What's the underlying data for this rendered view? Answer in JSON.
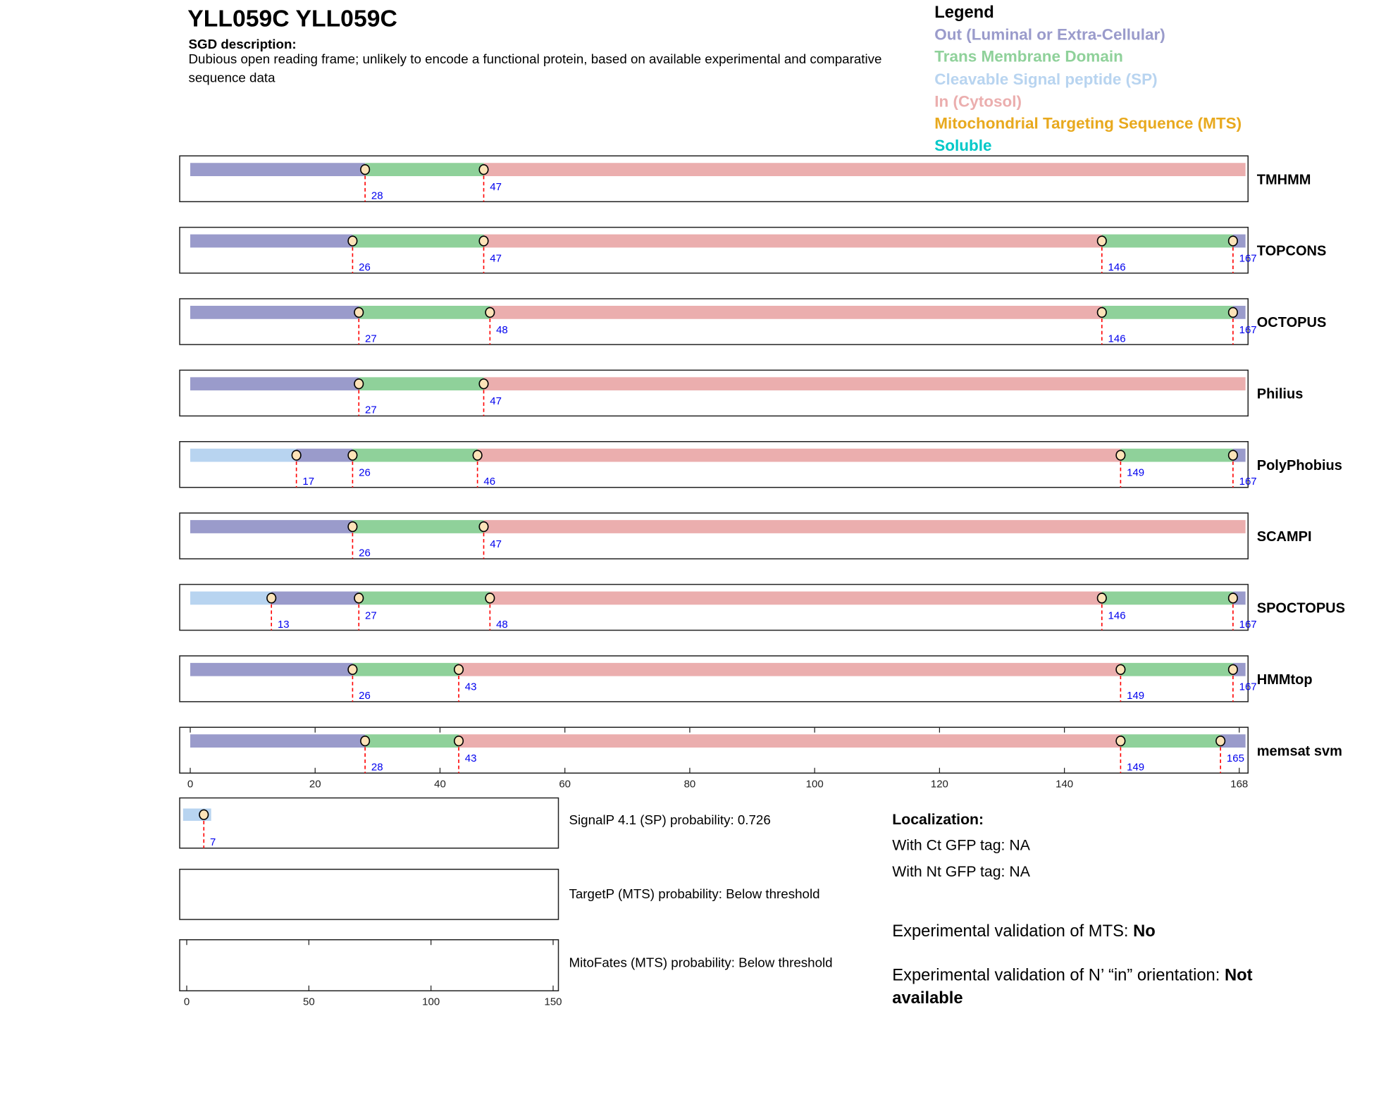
{
  "header": {
    "title": "YLL059C  YLL059C",
    "sgd_heading": "SGD description:",
    "sgd_description": "Dubious open reading frame; unlikely to encode a functional protein, based on available experimental and comparative sequence data"
  },
  "legend": {
    "title": "Legend",
    "items": [
      {
        "label": "Out (Luminal or Extra-Cellular)",
        "color": "#9a9bcb"
      },
      {
        "label": "Trans Membrane Domain",
        "color": "#8fd19a"
      },
      {
        "label": "Cleavable Signal peptide (SP)",
        "color": "#b8d4f0"
      },
      {
        "label": "In (Cytosol)",
        "color": "#ebaeae"
      },
      {
        "label": "Mitochondrial Targeting Sequence (MTS)",
        "color": "#e8a91e"
      },
      {
        "label": "Soluble",
        "color": "#00c8c8"
      }
    ]
  },
  "chart_data": {
    "type": "topology-tracks",
    "length": 169,
    "xlim": [
      0,
      168
    ],
    "xticks": [
      0,
      20,
      40,
      60,
      80,
      100,
      120,
      140,
      168
    ],
    "colors": {
      "out": "#9a9bcb",
      "tm": "#8fd19a",
      "sp": "#b8d4f0",
      "in": "#ebaeae"
    },
    "tracks": [
      {
        "name": "TMHMM",
        "segments": [
          [
            "out",
            0,
            28
          ],
          [
            "tm",
            28,
            47
          ],
          [
            "in",
            47,
            169
          ]
        ],
        "markers": [
          28,
          47
        ]
      },
      {
        "name": "TOPCONS",
        "segments": [
          [
            "out",
            0,
            26
          ],
          [
            "tm",
            26,
            47
          ],
          [
            "in",
            47,
            146
          ],
          [
            "tm",
            146,
            167
          ],
          [
            "out",
            167,
            169
          ]
        ],
        "markers": [
          26,
          47,
          146,
          167
        ]
      },
      {
        "name": "OCTOPUS",
        "segments": [
          [
            "out",
            0,
            27
          ],
          [
            "tm",
            27,
            48
          ],
          [
            "in",
            48,
            146
          ],
          [
            "tm",
            146,
            167
          ],
          [
            "out",
            167,
            169
          ]
        ],
        "markers": [
          27,
          48,
          146,
          167
        ]
      },
      {
        "name": "Philius",
        "segments": [
          [
            "out",
            0,
            27
          ],
          [
            "tm",
            27,
            47
          ],
          [
            "in",
            47,
            169
          ]
        ],
        "markers": [
          27,
          47
        ]
      },
      {
        "name": "PolyPhobius",
        "segments": [
          [
            "sp",
            0,
            17
          ],
          [
            "out",
            17,
            26
          ],
          [
            "tm",
            26,
            46
          ],
          [
            "in",
            46,
            149
          ],
          [
            "tm",
            149,
            167
          ],
          [
            "out",
            167,
            169
          ]
        ],
        "markers": [
          17,
          26,
          46,
          149,
          167
        ]
      },
      {
        "name": "SCAMPI",
        "segments": [
          [
            "out",
            0,
            26
          ],
          [
            "tm",
            26,
            47
          ],
          [
            "in",
            47,
            169
          ]
        ],
        "markers": [
          26,
          47
        ]
      },
      {
        "name": "SPOCTOPUS",
        "segments": [
          [
            "sp",
            0,
            13
          ],
          [
            "out",
            13,
            27
          ],
          [
            "tm",
            27,
            48
          ],
          [
            "in",
            48,
            146
          ],
          [
            "tm",
            146,
            167
          ],
          [
            "out",
            167,
            169
          ]
        ],
        "markers": [
          13,
          27,
          48,
          146,
          167
        ]
      },
      {
        "name": "HMMtop",
        "segments": [
          [
            "out",
            0,
            26
          ],
          [
            "tm",
            26,
            43
          ],
          [
            "in",
            43,
            149
          ],
          [
            "tm",
            149,
            167
          ],
          [
            "out",
            167,
            169
          ]
        ],
        "markers": [
          26,
          43,
          149,
          167
        ]
      },
      {
        "name": "memsat svm",
        "segments": [
          [
            "out",
            0,
            28
          ],
          [
            "tm",
            28,
            43
          ],
          [
            "in",
            43,
            149
          ],
          [
            "tm",
            149,
            165
          ],
          [
            "out",
            165,
            169
          ]
        ],
        "markers": [
          28,
          43,
          149,
          165
        ]
      }
    ],
    "signalp": {
      "segments": [
        [
          "sp",
          -1.5,
          10
        ]
      ],
      "markers": [
        7
      ]
    },
    "small_xlim": [
      0,
      150
    ],
    "small_xticks": [
      0,
      50,
      100,
      150
    ]
  },
  "panels": {
    "signalp": "SignalP 4.1 (SP) probability: 0.726",
    "targetp": "TargetP (MTS) probability: Below threshold",
    "mitofates": "MitoFates (MTS) probability: Below threshold"
  },
  "localization": {
    "heading": "Localization:",
    "ct": "With Ct GFP tag: NA",
    "nt": "With Nt GFP tag: NA",
    "mts_label": "Experimental validation of MTS: ",
    "mts_value": "No",
    "nin_label": "Experimental validation of N’ “in” orientation: ",
    "nin_value": "Not available"
  }
}
